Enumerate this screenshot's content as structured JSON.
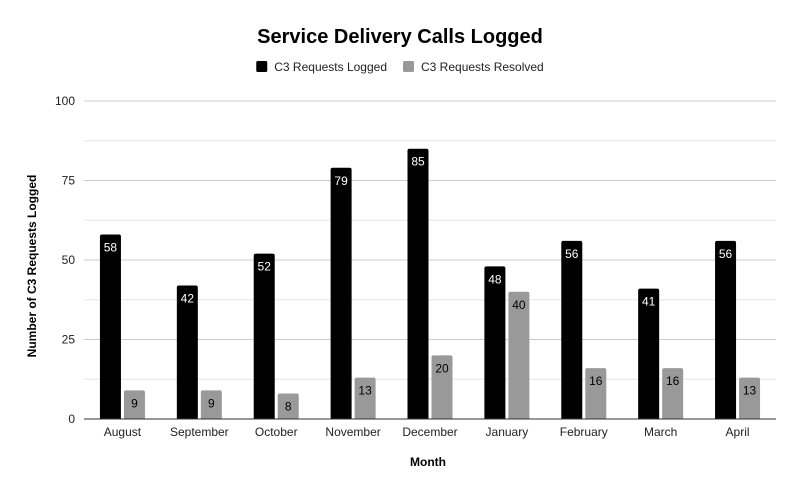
{
  "chart_data": {
    "type": "bar",
    "title": "Service Delivery Calls Logged",
    "xlabel": "Month",
    "ylabel": "Number of C3 Requests Logged",
    "categories": [
      "August",
      "September",
      "October",
      "November",
      "December",
      "January",
      "February",
      "March",
      "April"
    ],
    "series": [
      {
        "name": "C3 Requests Logged",
        "color": "#000000",
        "label_color": "#ffffff",
        "values": [
          58,
          42,
          52,
          79,
          85,
          48,
          56,
          41,
          56
        ]
      },
      {
        "name": "C3 Requests Resolved",
        "color": "#999999",
        "label_color": "#000000",
        "values": [
          9,
          9,
          8,
          13,
          20,
          40,
          16,
          16,
          13
        ]
      }
    ],
    "ylim": [
      0,
      100
    ],
    "yticks": [
      0,
      25,
      50,
      75,
      100
    ],
    "grid": true,
    "legend_position": "top-center"
  }
}
